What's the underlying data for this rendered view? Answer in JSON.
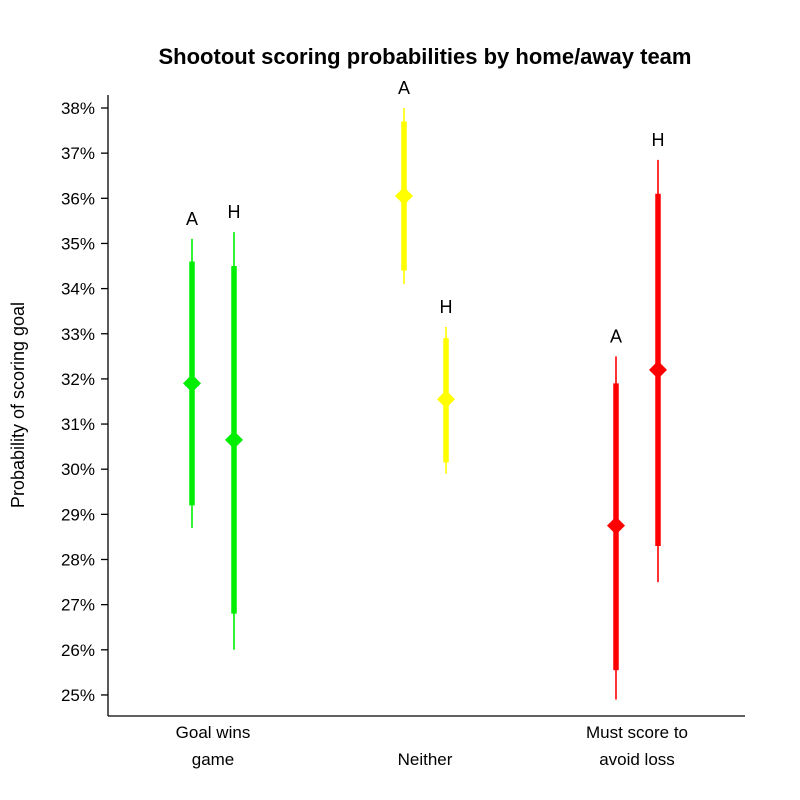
{
  "chart_data": {
    "type": "scatter",
    "subtype": "interval-plot",
    "title": "Shootout scoring probabilities by home/away team",
    "xlabel": "",
    "ylabel": "Probability of scoring goal",
    "ylim": [
      24.5,
      38.1
    ],
    "yticks": [
      {
        "value": 25,
        "label": "25%"
      },
      {
        "value": 26,
        "label": "26%"
      },
      {
        "value": 27,
        "label": "27%"
      },
      {
        "value": 28,
        "label": "28%"
      },
      {
        "value": 29,
        "label": "29%"
      },
      {
        "value": 30,
        "label": "30%"
      },
      {
        "value": 31,
        "label": "31%"
      },
      {
        "value": 32,
        "label": "32%"
      },
      {
        "value": 33,
        "label": "33%"
      },
      {
        "value": 34,
        "label": "34%"
      },
      {
        "value": 35,
        "label": "35%"
      },
      {
        "value": 36,
        "label": "36%"
      },
      {
        "value": 37,
        "label": "37%"
      },
      {
        "value": 38,
        "label": "38%"
      }
    ],
    "categories": [
      {
        "lines": [
          "Goal wins",
          "game"
        ]
      },
      {
        "lines": [
          "Neither"
        ]
      },
      {
        "lines": [
          "Must score to",
          "avoid loss"
        ]
      }
    ],
    "grid": false,
    "legend": "none",
    "points": [
      {
        "category": 0,
        "label": "A",
        "color": "#00ee00",
        "estimate": 31.9,
        "inner": [
          29.2,
          34.6
        ],
        "outer": [
          28.7,
          35.1
        ]
      },
      {
        "category": 0,
        "label": "H",
        "color": "#00ee00",
        "estimate": 30.65,
        "inner": [
          26.8,
          34.5
        ],
        "outer": [
          26.0,
          35.25
        ]
      },
      {
        "category": 1,
        "label": "A",
        "color": "#ffff00",
        "estimate": 36.05,
        "inner": [
          34.4,
          37.7
        ],
        "outer": [
          34.1,
          38.0
        ]
      },
      {
        "category": 1,
        "label": "H",
        "color": "#ffff00",
        "estimate": 31.55,
        "inner": [
          30.15,
          32.9
        ],
        "outer": [
          29.9,
          33.15
        ]
      },
      {
        "category": 2,
        "label": "A",
        "color": "#ff0000",
        "estimate": 28.75,
        "inner": [
          25.55,
          31.9
        ],
        "outer": [
          24.9,
          32.5
        ]
      },
      {
        "category": 2,
        "label": "H",
        "color": "#ff0000",
        "estimate": 32.2,
        "inner": [
          28.3,
          36.1
        ],
        "outer": [
          27.5,
          36.85
        ]
      }
    ]
  }
}
